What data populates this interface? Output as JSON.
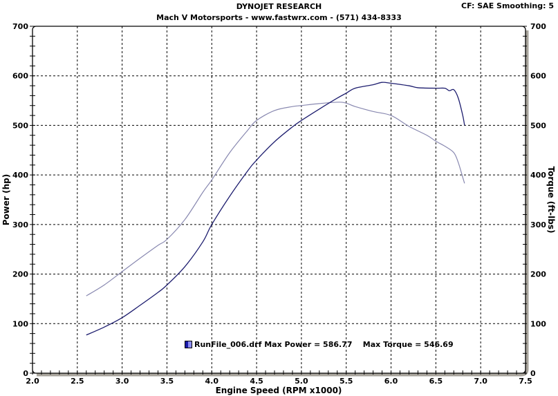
{
  "header": {
    "title": "DYNOJET RESEARCH",
    "subtitle": "Mach V Motorsports - www.fastwrx.com - (571) 434-8333",
    "correction_info": "CF: SAE  Smoothing: 5"
  },
  "legend": {
    "run_file": "RunFile_006.drf",
    "max_power_label": "Max Power = 586.77",
    "max_torque_label": "Max Torque = 546.69",
    "text": "RunFile_006.drf Max Power = 586.77    Max Torque = 546.69"
  },
  "axes": {
    "x_label": "Engine Speed (RPM x1000)",
    "y_left_label": "Power (hp)",
    "y_right_label": "Torque (ft-lbs)",
    "x_ticks": [
      "2.0",
      "2.5",
      "3.0",
      "3.5",
      "4.0",
      "4.5",
      "5.0",
      "5.5",
      "6.0",
      "6.5",
      "7.0",
      "7.5"
    ],
    "y_ticks": [
      "0",
      "100",
      "200",
      "300",
      "400",
      "500",
      "600",
      "700"
    ]
  },
  "colors": {
    "power": "#1c1c6e",
    "torque": "#8888b0",
    "frame": "#000000",
    "shadow": "#a8a49c",
    "grid": "#000000"
  },
  "chart_data": {
    "type": "line",
    "title": "DYNOJET RESEARCH",
    "subtitle": "Mach V Motorsports - www.fastwrx.com - (571) 434-8333",
    "xlabel": "Engine Speed (RPM x1000)",
    "ylabel": "Power (hp)",
    "ylabel_right": "Torque (ft-lbs)",
    "xlim": [
      2.0,
      7.5
    ],
    "ylim": [
      0,
      700
    ],
    "grid": true,
    "legend_position": "bottom-center inside plot",
    "annotations": [
      "CF: SAE  Smoothing: 5",
      "Max Power = 586.77",
      "Max Torque = 546.69"
    ],
    "series": [
      {
        "name": "Power (hp)",
        "x": [
          2.6,
          2.8,
          3.0,
          3.2,
          3.4,
          3.5,
          3.7,
          3.9,
          4.0,
          4.2,
          4.4,
          4.5,
          4.7,
          4.9,
          5.0,
          5.2,
          5.4,
          5.5,
          5.6,
          5.8,
          5.9,
          6.0,
          6.2,
          6.3,
          6.5,
          6.6,
          6.65,
          6.7,
          6.75,
          6.8,
          6.82
        ],
        "values": [
          77,
          93,
          112,
          137,
          163,
          178,
          215,
          265,
          300,
          357,
          408,
          430,
          467,
          497,
          510,
          533,
          555,
          565,
          575,
          582,
          586.8,
          585,
          580,
          576,
          575,
          575,
          570,
          572,
          555,
          520,
          500
        ]
      },
      {
        "name": "Torque (ft-lbs)",
        "x": [
          2.6,
          2.8,
          3.0,
          3.2,
          3.4,
          3.5,
          3.7,
          3.9,
          4.0,
          4.2,
          4.4,
          4.5,
          4.7,
          4.9,
          5.0,
          5.2,
          5.45,
          5.6,
          5.8,
          6.0,
          6.2,
          6.4,
          6.5,
          6.6,
          6.7,
          6.75,
          6.8,
          6.82
        ],
        "values": [
          156,
          178,
          205,
          232,
          258,
          270,
          310,
          365,
          390,
          445,
          490,
          510,
          530,
          538,
          540,
          544,
          546.7,
          538,
          528,
          520,
          498,
          480,
          468,
          458,
          445,
          425,
          395,
          383
        ]
      }
    ]
  }
}
